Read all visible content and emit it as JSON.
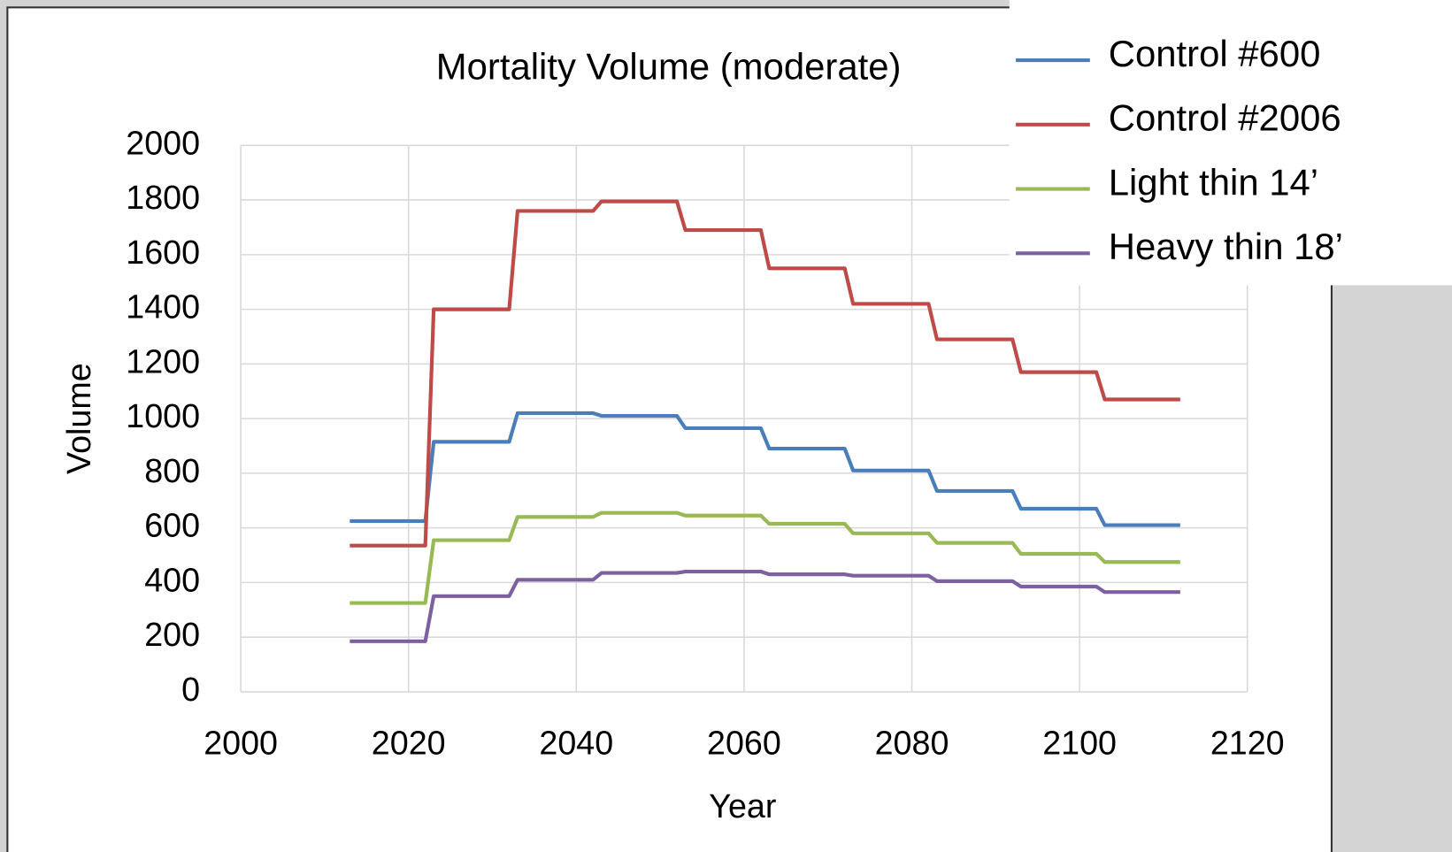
{
  "chart_data": {
    "type": "line",
    "title": "Mortality Volume (moderate)",
    "x_label": "Year",
    "y_label": "Volume",
    "x": [
      2013,
      2022,
      2023,
      2032,
      2033,
      2042,
      2043,
      2052,
      2053,
      2062,
      2063,
      2072,
      2073,
      2082,
      2083,
      2092,
      2093,
      2102,
      2103,
      2112
    ],
    "series": [
      {
        "name": "Control #600",
        "color": "#4a7ebb",
        "values": [
          625,
          625,
          915,
          915,
          1020,
          1020,
          1010,
          1010,
          965,
          965,
          890,
          890,
          810,
          810,
          735,
          735,
          670,
          670,
          610,
          610
        ]
      },
      {
        "name": "Control #2006",
        "color": "#be4b48",
        "values": [
          535,
          535,
          1400,
          1400,
          1760,
          1760,
          1795,
          1795,
          1690,
          1690,
          1550,
          1550,
          1420,
          1420,
          1290,
          1290,
          1170,
          1170,
          1070,
          1070
        ]
      },
      {
        "name": "Light thin 14’",
        "color": "#98b954",
        "values": [
          325,
          325,
          555,
          555,
          640,
          640,
          655,
          655,
          645,
          645,
          615,
          615,
          580,
          580,
          545,
          545,
          505,
          505,
          475,
          475
        ]
      },
      {
        "name": "Heavy thin 18’",
        "color": "#7d60a0",
        "values": [
          185,
          185,
          350,
          350,
          410,
          410,
          435,
          435,
          440,
          440,
          430,
          430,
          425,
          425,
          405,
          405,
          385,
          385,
          365,
          365
        ]
      }
    ],
    "xlim": [
      2000,
      2120
    ],
    "xticks": [
      2000,
      2020,
      2040,
      2060,
      2080,
      2100,
      2120
    ],
    "ylim": [
      0,
      2000
    ],
    "yticks": [
      0,
      200,
      400,
      600,
      800,
      1000,
      1200,
      1400,
      1600,
      1800,
      2000
    ],
    "grid": true
  }
}
